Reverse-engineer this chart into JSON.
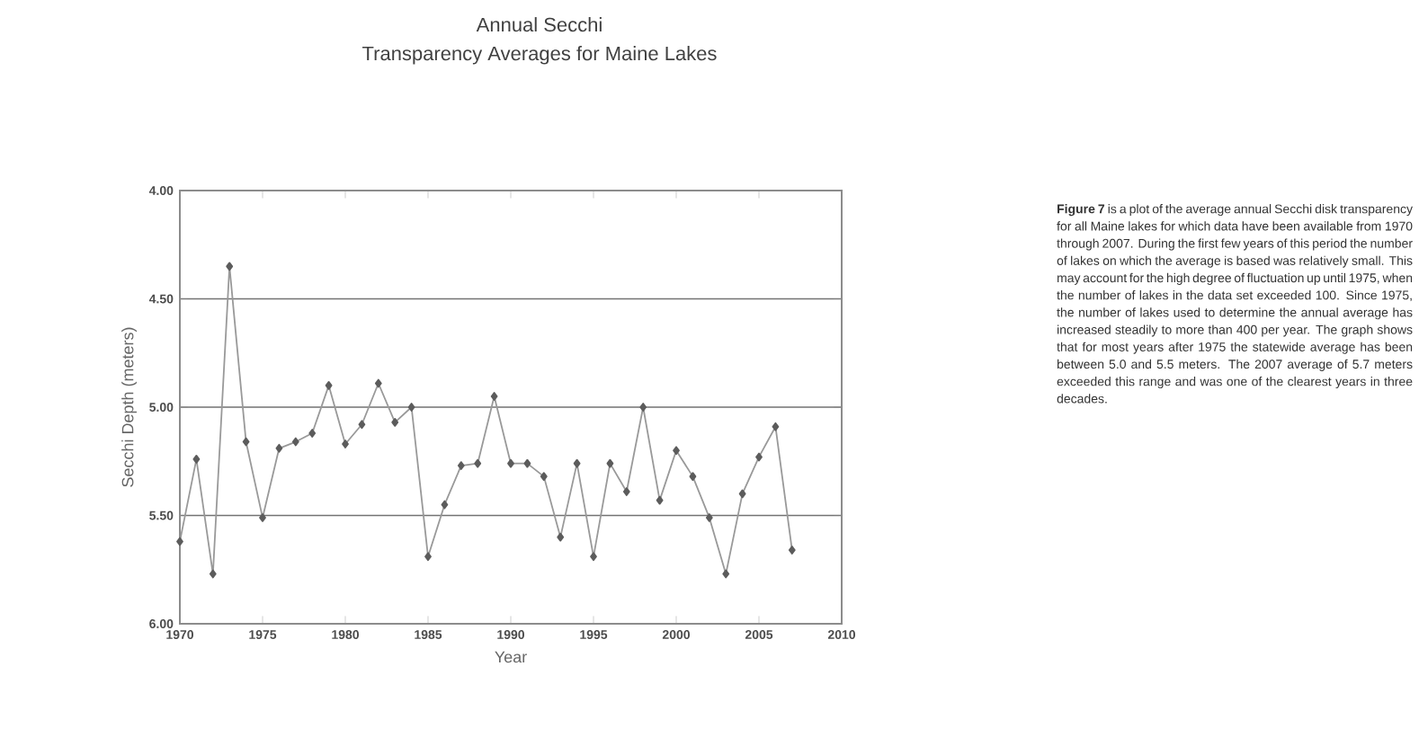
{
  "chart_data": {
    "type": "line",
    "title": "Annual Secchi",
    "subtitle": "Transparency Averages for Maine Lakes",
    "xlabel": "Year",
    "ylabel": "Secchi Depth (meters)",
    "annotations": [
      "**Figure 7** is a plot of the average annual Secchi disk transparency for all Maine lakes for which data have been available from 1970 through 2007. During the first few years of this period the number of lakes on which the average is based was relatively small. This may account for the high degree of fluctuation up until 1975, when the number of lakes in the data set exceeded 100. Since 1975, the number of lakes used to determine the annual average has increased steadily to more than 400 per year. The graph shows that for most years after 1975 the statewide average has been between 5.0 and 5.5 meters. The 2007 average of 5.7 meters exceeded this range and was one of the clearest years in three decades."
    ],
    "x": [
      1970,
      1971,
      1972,
      1973,
      1974,
      1975,
      1976,
      1977,
      1978,
      1979,
      1980,
      1981,
      1982,
      1983,
      1984,
      1985,
      1986,
      1987,
      1988,
      1989,
      1990,
      1991,
      1992,
      1993,
      1994,
      1995,
      1996,
      1997,
      1998,
      1999,
      2000,
      2001,
      2002,
      2003,
      2004,
      2005,
      2006,
      2007
    ],
    "series": [
      {
        "color": "#999999",
        "values": [
          5.62,
          5.24,
          5.77,
          4.35,
          5.16,
          5.51,
          5.19,
          5.16,
          5.12,
          4.9,
          5.17,
          5.08,
          4.89,
          5.07,
          5.0,
          5.69,
          5.45,
          5.27,
          5.26,
          4.95,
          5.26,
          5.26,
          5.32,
          5.6,
          5.26,
          5.69,
          5.26,
          5.39,
          5.0,
          5.43,
          5.2,
          5.32,
          5.51,
          5.77,
          5.4,
          5.23,
          5.09,
          5.66
        ]
      }
    ],
    "xlim": [
      1970,
      2010
    ],
    "ylim": [
      6,
      4
    ],
    "xticks": [
      1970,
      1975,
      1980,
      1985,
      1990,
      1995,
      2000,
      2005,
      2010
    ],
    "yticks": [
      {
        "value": 4,
        "label": "4.00"
      },
      {
        "value": 4.5,
        "label": "4.50"
      },
      {
        "value": 5,
        "label": "5.00"
      },
      {
        "value": 5.5,
        "label": "5.50"
      },
      {
        "value": 6,
        "label": "6.00"
      }
    ],
    "grid": "y",
    "marker": "diamond",
    "line_style": "solid"
  }
}
